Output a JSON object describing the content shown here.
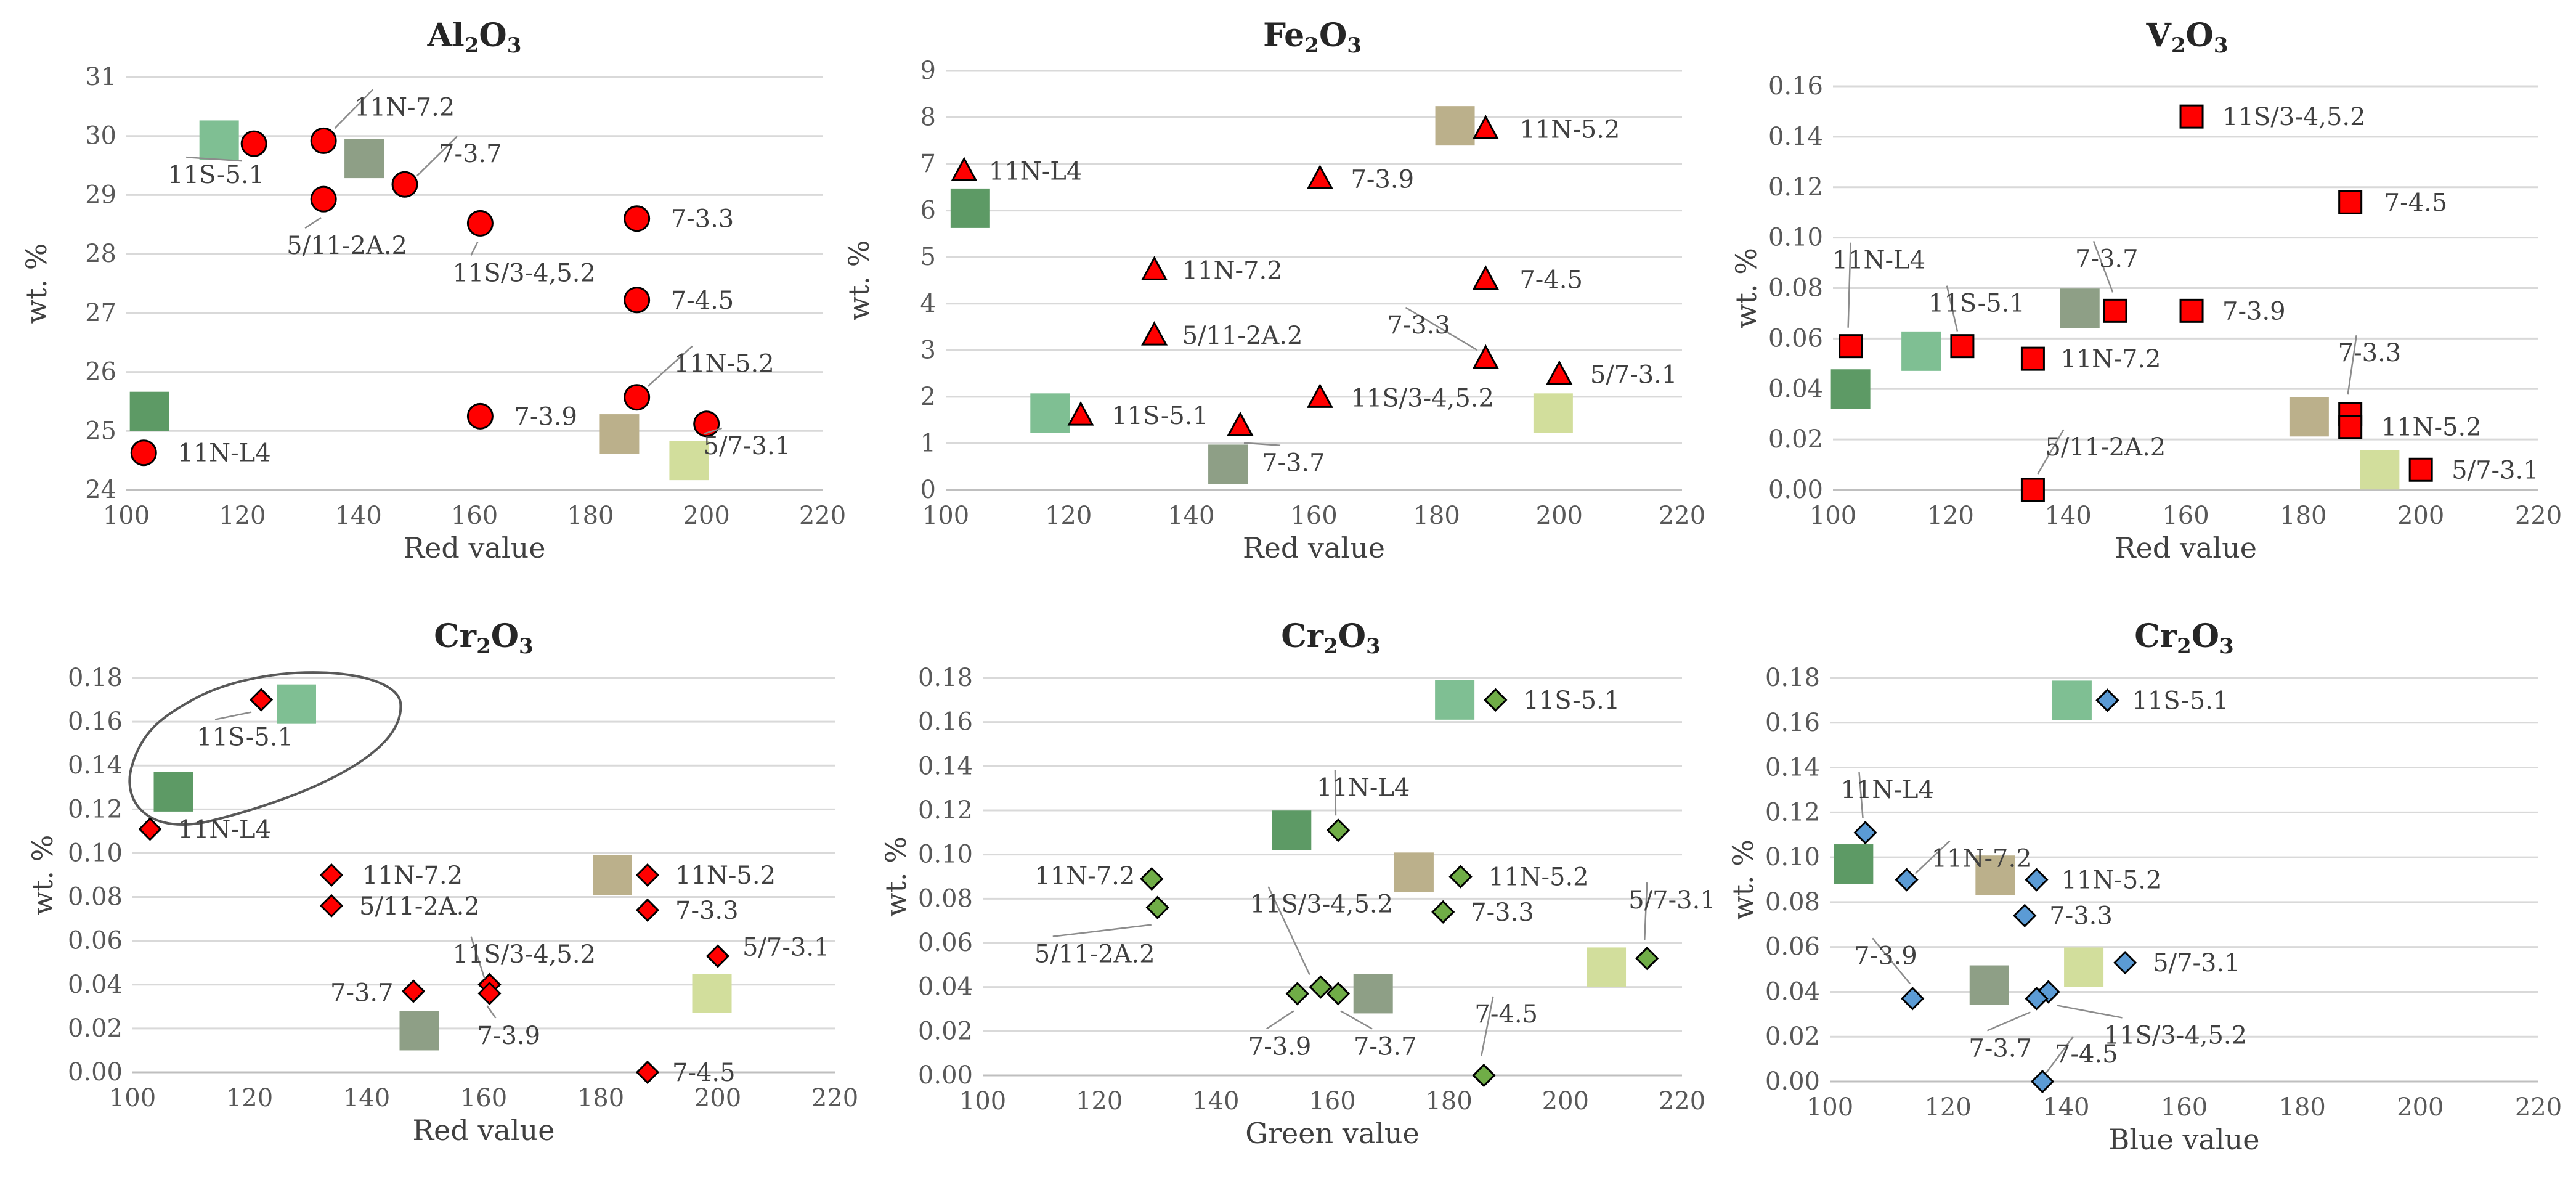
{
  "chart_data": [
    {
      "type": "scatter",
      "title": "Al2O3",
      "title_main": "Al",
      "title_sub1": "2",
      "title_mid": "O",
      "title_sub2": "3",
      "xlabel": "Red value",
      "ylabel": "wt. %",
      "xlim": [
        100,
        220
      ],
      "ylim": [
        24,
        31
      ],
      "xticks": [
        "100",
        "120",
        "140",
        "160",
        "180",
        "200",
        "220"
      ],
      "yticks": [
        "24",
        "25",
        "26",
        "27",
        "28",
        "29",
        "30",
        "31"
      ],
      "marker": "circle",
      "points": [
        {
          "label": "11S-5.1",
          "x": 122,
          "y": 29.87
        },
        {
          "label": "11N-7.2",
          "x": 134,
          "y": 29.92
        },
        {
          "label": "5/11-2A.2",
          "x": 134,
          "y": 28.93
        },
        {
          "label": "7-3.7",
          "x": 148,
          "y": 29.18
        },
        {
          "label": "11S/3-4,5.2",
          "x": 161,
          "y": 28.52
        },
        {
          "label": "7-3.3",
          "x": 188,
          "y": 28.6
        },
        {
          "label": "7-4.5",
          "x": 188,
          "y": 27.22
        },
        {
          "label": "11N-5.2",
          "x": 188,
          "y": 25.57
        },
        {
          "label": "7-3.9",
          "x": 161,
          "y": 25.25
        },
        {
          "label": "5/7-3.1",
          "x": 200,
          "y": 25.12
        },
        {
          "label": "11N-L4",
          "x": 103,
          "y": 24.63
        }
      ],
      "swatches": [
        {
          "color": "#7fbf93",
          "x": 116,
          "y": 29.93
        },
        {
          "color": "#8e9f86",
          "x": 141,
          "y": 29.62
        },
        {
          "color": "#5d9a65",
          "x": 104,
          "y": 25.33
        },
        {
          "color": "#bbb08b",
          "x": 185,
          "y": 24.95
        },
        {
          "color": "#d2de9c",
          "x": 197,
          "y": 24.5
        }
      ]
    },
    {
      "type": "scatter",
      "title": "Fe2O3",
      "title_main": "Fe",
      "title_sub1": "2",
      "title_mid": "O",
      "title_sub2": "3",
      "xlabel": "Red value",
      "ylabel": "wt. %",
      "xlim": [
        100,
        220
      ],
      "ylim": [
        0,
        9
      ],
      "xticks": [
        "100",
        "120",
        "140",
        "160",
        "180",
        "200",
        "220"
      ],
      "yticks": [
        "0",
        "1",
        "2",
        "3",
        "4",
        "5",
        "6",
        "7",
        "8",
        "9"
      ],
      "marker": "triangle",
      "points": [
        {
          "label": "11N-5.2",
          "x": 188,
          "y": 7.75
        },
        {
          "label": "11N-L4",
          "x": 103,
          "y": 6.85
        },
        {
          "label": "7-3.9",
          "x": 161,
          "y": 6.68
        },
        {
          "label": "11N-7.2",
          "x": 134,
          "y": 4.72
        },
        {
          "label": "7-4.5",
          "x": 188,
          "y": 4.52
        },
        {
          "label": "5/11-2A.2",
          "x": 134,
          "y": 3.32
        },
        {
          "label": "7-3.3",
          "x": 188,
          "y": 2.82
        },
        {
          "label": "5/7-3.1",
          "x": 200,
          "y": 2.48
        },
        {
          "label": "11S/3-4,5.2",
          "x": 161,
          "y": 1.98
        },
        {
          "label": "11S-5.1",
          "x": 122,
          "y": 1.6
        },
        {
          "label": "7-3.7",
          "x": 148,
          "y": 1.38
        }
      ],
      "swatches": [
        {
          "color": "#bbb08b",
          "x": 183,
          "y": 7.82
        },
        {
          "color": "#5d9a65",
          "x": 104,
          "y": 6.05
        },
        {
          "color": "#7fbf93",
          "x": 117,
          "y": 1.65
        },
        {
          "color": "#8e9f86",
          "x": 146,
          "y": 0.55
        },
        {
          "color": "#d2de9c",
          "x": 199,
          "y": 1.65
        }
      ]
    },
    {
      "type": "scatter",
      "title": "V2O3",
      "title_main": "V",
      "title_sub1": "2",
      "title_mid": "O",
      "title_sub2": "3",
      "xlabel": "Red value",
      "ylabel": "wt. %",
      "xlim": [
        100,
        220
      ],
      "ylim": [
        0,
        0.16
      ],
      "xticks": [
        "100",
        "120",
        "140",
        "160",
        "180",
        "200",
        "220"
      ],
      "yticks": [
        "0.00",
        "0.02",
        "0.04",
        "0.06",
        "0.08",
        "0.10",
        "0.12",
        "0.14",
        "0.16"
      ],
      "marker": "square",
      "points": [
        {
          "label": "11S/3-4,5.2",
          "x": 161,
          "y": 0.148
        },
        {
          "label": "7-4.5",
          "x": 188,
          "y": 0.114
        },
        {
          "label": "7-3.7",
          "x": 148,
          "y": 0.071
        },
        {
          "label": "7-3.9",
          "x": 161,
          "y": 0.071
        },
        {
          "label": "11N-L4",
          "x": 103,
          "y": 0.057
        },
        {
          "label": "11S-5.1",
          "x": 122,
          "y": 0.057
        },
        {
          "label": "11N-7.2",
          "x": 134,
          "y": 0.052
        },
        {
          "label": "7-3.3",
          "x": 188,
          "y": 0.03
        },
        {
          "label": "11N-5.2",
          "x": 188,
          "y": 0.025
        },
        {
          "label": "5/7-3.1",
          "x": 200,
          "y": 0.008
        },
        {
          "label": "5/11-2A.2",
          "x": 134,
          "y": 0.0
        }
      ],
      "swatches": [
        {
          "color": "#7fbf93",
          "x": 115,
          "y": 0.055
        },
        {
          "color": "#8e9f86",
          "x": 142,
          "y": 0.072
        },
        {
          "color": "#5d9a65",
          "x": 103,
          "y": 0.04
        },
        {
          "color": "#bbb08b",
          "x": 181,
          "y": 0.029
        },
        {
          "color": "#d2de9c",
          "x": 193,
          "y": 0.008
        }
      ]
    },
    {
      "type": "scatter",
      "title": "Cr2O3",
      "title_main": "Cr",
      "title_sub1": "2",
      "title_mid": "O",
      "title_sub2": "3",
      "xlabel": "Red value",
      "ylabel": "wt. %",
      "xlim": [
        100,
        220
      ],
      "ylim": [
        0,
        0.18
      ],
      "xticks": [
        "100",
        "120",
        "140",
        "160",
        "180",
        "200",
        "220"
      ],
      "yticks": [
        "0.00",
        "0.02",
        "0.04",
        "0.06",
        "0.08",
        "0.10",
        "0.12",
        "0.14",
        "0.16",
        "0.18"
      ],
      "marker": "diamond",
      "points": [
        {
          "label": "11S-5.1",
          "x": 122,
          "y": 0.17
        },
        {
          "label": "11N-L4",
          "x": 103,
          "y": 0.111
        },
        {
          "label": "11N-7.2",
          "x": 134,
          "y": 0.09
        },
        {
          "label": "11N-5.2",
          "x": 188,
          "y": 0.09
        },
        {
          "label": "5/11-2A.2",
          "x": 134,
          "y": 0.076
        },
        {
          "label": "7-3.3",
          "x": 188,
          "y": 0.074
        },
        {
          "label": "5/7-3.1",
          "x": 200,
          "y": 0.053
        },
        {
          "label": "11S/3-4,5.2",
          "x": 161,
          "y": 0.04
        },
        {
          "label": "7-3.7",
          "x": 148,
          "y": 0.037
        },
        {
          "label": "7-3.9",
          "x": 161,
          "y": 0.036
        },
        {
          "label": "7-4.5",
          "x": 188,
          "y": 0.0
        }
      ],
      "swatches": [
        {
          "color": "#7fbf93",
          "x": 128,
          "y": 0.168
        },
        {
          "color": "#5d9a65",
          "x": 107,
          "y": 0.128
        },
        {
          "color": "#bbb08b",
          "x": 182,
          "y": 0.09
        },
        {
          "color": "#d2de9c",
          "x": 199,
          "y": 0.036
        },
        {
          "color": "#8e9f86",
          "x": 149,
          "y": 0.019
        }
      ]
    },
    {
      "type": "scatter",
      "title": "Cr2O3",
      "title_main": "Cr",
      "title_sub1": "2",
      "title_mid": "O",
      "title_sub2": "3",
      "xlabel": "Green value",
      "ylabel": "wt. %",
      "xlim": [
        100,
        220
      ],
      "ylim": [
        0,
        0.18
      ],
      "xticks": [
        "100",
        "120",
        "140",
        "160",
        "180",
        "200",
        "220"
      ],
      "yticks": [
        "0.00",
        "0.02",
        "0.04",
        "0.06",
        "0.08",
        "0.10",
        "0.12",
        "0.14",
        "0.16",
        "0.18"
      ],
      "marker": "diamond",
      "points": [
        {
          "label": "11S-5.1",
          "x": 188,
          "y": 0.17
        },
        {
          "label": "11N-L4",
          "x": 161,
          "y": 0.111
        },
        {
          "label": "11N-5.2",
          "x": 182,
          "y": 0.09
        },
        {
          "label": "11N-7.2",
          "x": 129,
          "y": 0.089
        },
        {
          "label": "5/11-2A.2",
          "x": 130,
          "y": 0.076
        },
        {
          "label": "7-3.3",
          "x": 179,
          "y": 0.074
        },
        {
          "label": "5/7-3.1",
          "x": 214,
          "y": 0.053
        },
        {
          "label": "11S/3-4,5.2",
          "x": 158,
          "y": 0.04
        },
        {
          "label": "7-3.9",
          "x": 154,
          "y": 0.037
        },
        {
          "label": "7-3.7",
          "x": 161,
          "y": 0.037
        },
        {
          "label": "7-4.5",
          "x": 186,
          "y": 0.0
        }
      ],
      "swatches": [
        {
          "color": "#7fbf93",
          "x": 181,
          "y": 0.17
        },
        {
          "color": "#5d9a65",
          "x": 153,
          "y": 0.111
        },
        {
          "color": "#bbb08b",
          "x": 174,
          "y": 0.092
        },
        {
          "color": "#d2de9c",
          "x": 207,
          "y": 0.049
        },
        {
          "color": "#8e9f86",
          "x": 167,
          "y": 0.037
        }
      ]
    },
    {
      "type": "scatter",
      "title": "Cr2O3",
      "title_main": "Cr",
      "title_sub1": "2",
      "title_mid": "O",
      "title_sub2": "3",
      "xlabel": "Blue value",
      "ylabel": "wt. %",
      "xlim": [
        100,
        220
      ],
      "ylim": [
        0,
        0.18
      ],
      "xticks": [
        "100",
        "120",
        "140",
        "160",
        "180",
        "200",
        "220"
      ],
      "yticks": [
        "0.00",
        "0.02",
        "0.04",
        "0.06",
        "0.08",
        "0.10",
        "0.12",
        "0.14",
        "0.16",
        "0.18"
      ],
      "marker": "diamond",
      "points": [
        {
          "label": "11S-5.1",
          "x": 147,
          "y": 0.17
        },
        {
          "label": "11N-L4",
          "x": 106,
          "y": 0.111
        },
        {
          "label": "11N-7.2",
          "x": 113,
          "y": 0.09
        },
        {
          "label": "11N-5.2",
          "x": 135,
          "y": 0.09
        },
        {
          "label": "7-3.3",
          "x": 133,
          "y": 0.074
        },
        {
          "label": "5/7-3.1",
          "x": 150,
          "y": 0.053
        },
        {
          "label": "11S/3-4,5.2",
          "x": 137,
          "y": 0.04
        },
        {
          "label": "7-3.9",
          "x": 114,
          "y": 0.037
        },
        {
          "label": "7-3.7",
          "x": 135,
          "y": 0.037
        },
        {
          "label": "7-4.5",
          "x": 136,
          "y": 0.0
        }
      ],
      "swatches": [
        {
          "color": "#7fbf93",
          "x": 141,
          "y": 0.17
        },
        {
          "color": "#5d9a65",
          "x": 104,
          "y": 0.097
        },
        {
          "color": "#bbb08b",
          "x": 128,
          "y": 0.092
        },
        {
          "color": "#d2de9c",
          "x": 143,
          "y": 0.051
        },
        {
          "color": "#8e9f86",
          "x": 127,
          "y": 0.043
        }
      ]
    }
  ],
  "marker_colors": {
    "circle": "#ff0000",
    "triangle": "#ff0000",
    "square": "#ff0000",
    "diamond_red": "#ff0000",
    "diamond_green": "#70ad47",
    "diamond_blue": "#5b9bd5"
  }
}
